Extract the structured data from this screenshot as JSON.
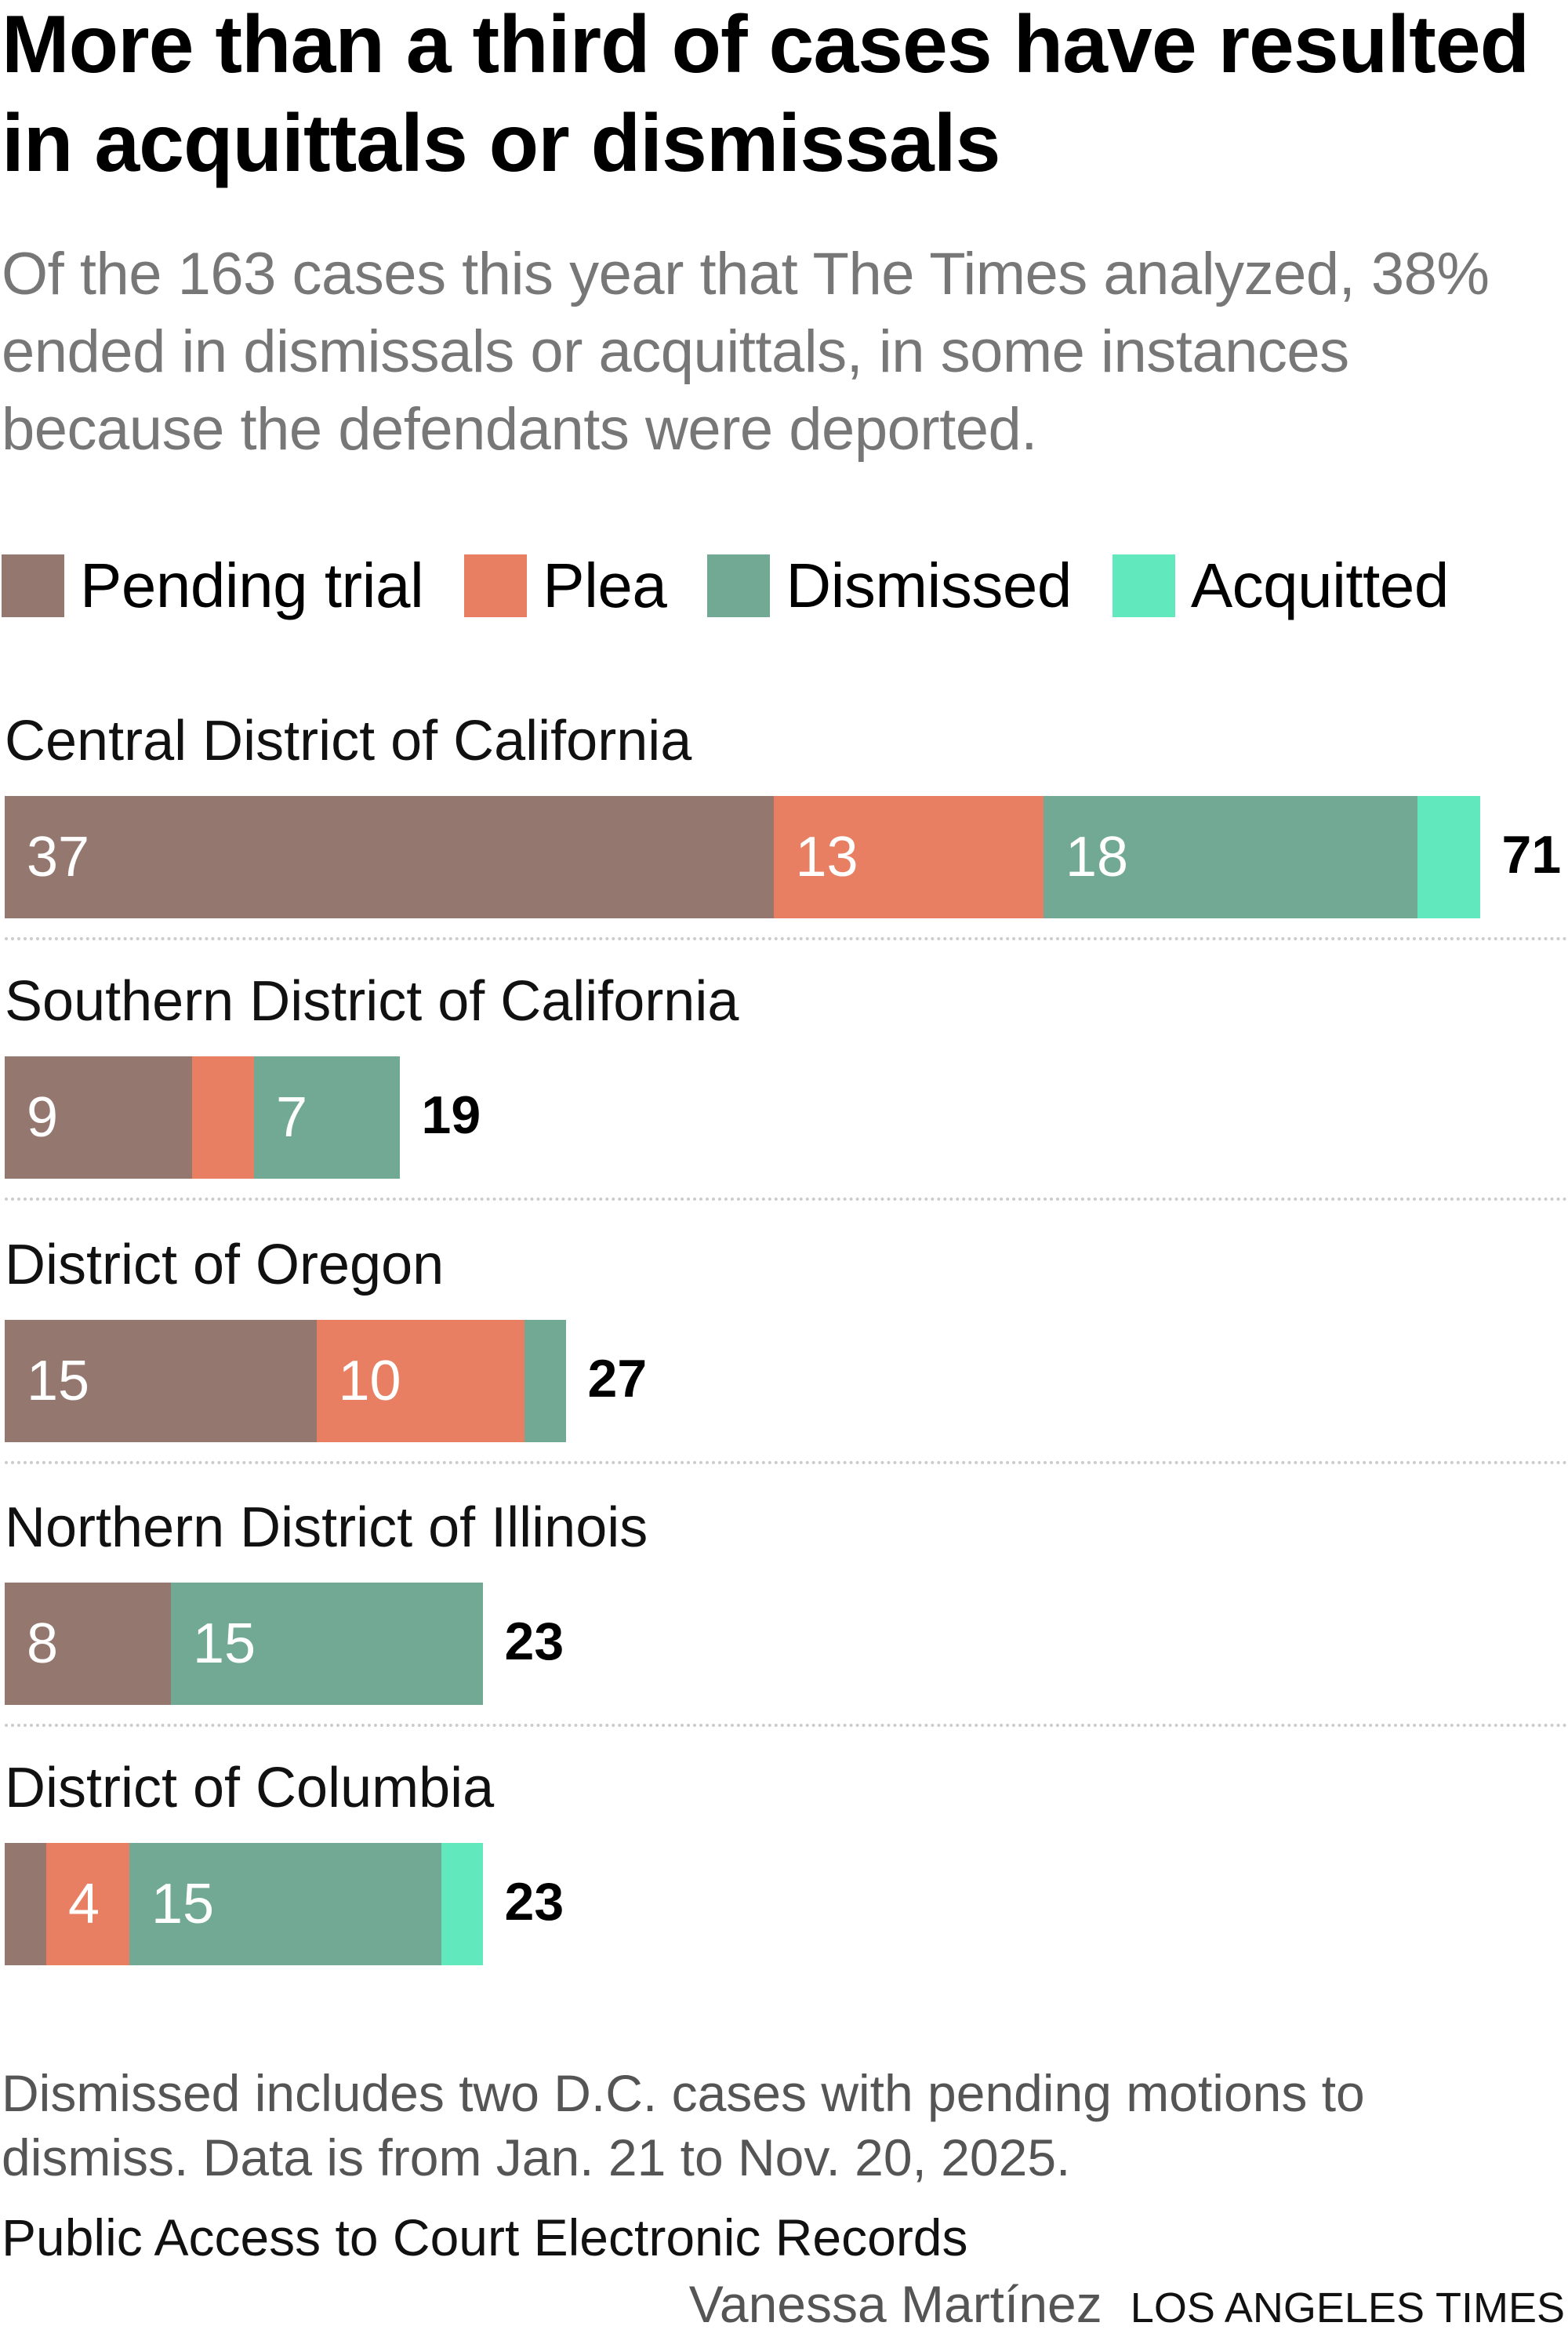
{
  "title": "More than a third of cases have resulted in acquittals or dismissals",
  "subtitle": "Of the 163 cases this year that The Times analyzed, 38% ended in dismissals or acquittals, in some instances because the defendants were deported.",
  "legend": [
    {
      "label": "Pending trial",
      "color": "#947870"
    },
    {
      "label": "Plea",
      "color": "#E87F63"
    },
    {
      "label": "Dismissed",
      "color": "#72A995"
    },
    {
      "label": "Acquitted",
      "color": "#62E8BD"
    }
  ],
  "chart_data": {
    "type": "bar",
    "orientation": "horizontal-stacked",
    "title": "More than a third of cases have resulted in acquittals or dismissals",
    "categories": [
      "Central District of California",
      "Southern District of California",
      "District of Oregon",
      "Northern District of Illinois",
      "District of Columbia"
    ],
    "series": [
      {
        "name": "Pending trial",
        "values": [
          37,
          9,
          15,
          8,
          2
        ]
      },
      {
        "name": "Plea",
        "values": [
          13,
          3,
          10,
          0,
          4
        ]
      },
      {
        "name": "Dismissed",
        "values": [
          18,
          7,
          2,
          15,
          15
        ]
      },
      {
        "name": "Acquitted",
        "values": [
          3,
          0,
          0,
          0,
          2
        ]
      }
    ],
    "segment_labels": [
      [
        "37",
        "13",
        "18",
        ""
      ],
      [
        "9",
        "",
        "7",
        ""
      ],
      [
        "15",
        "10",
        "",
        ""
      ],
      [
        "8",
        "",
        "15",
        ""
      ],
      [
        "",
        "4",
        "15",
        ""
      ]
    ],
    "totals": [
      "71",
      "19",
      "27",
      "23",
      "23"
    ],
    "xlim": [
      0,
      71
    ],
    "legend_position": "top-left",
    "grid": false
  },
  "note": "Dismissed includes two D.C. cases with pending motions to dismiss. Data is from Jan. 21 to Nov. 20, 2025.",
  "source": "Public Access to Court Electronic Records",
  "credit": {
    "author": "Vanessa Martínez",
    "org": "LOS ANGELES TIMES"
  }
}
